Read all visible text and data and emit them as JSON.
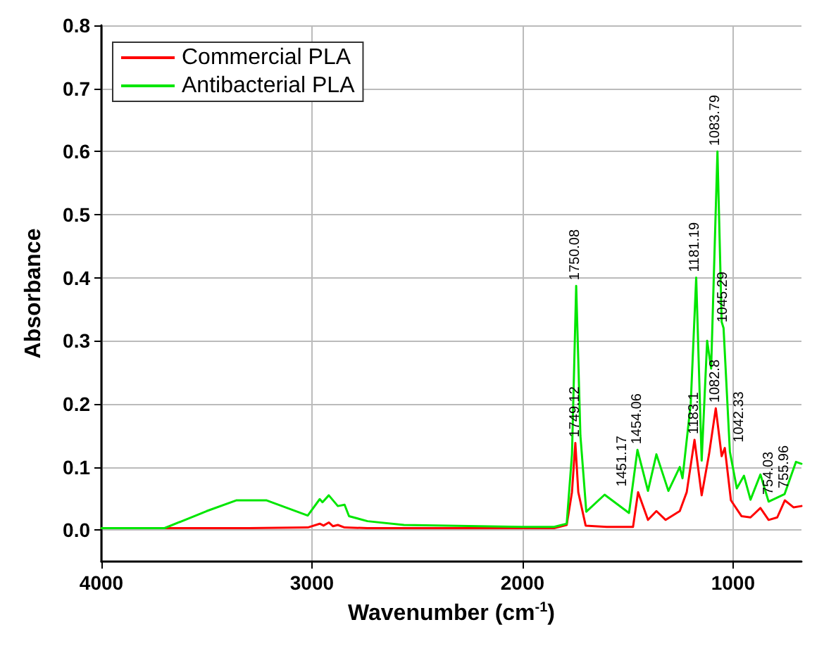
{
  "chart_data": {
    "type": "line",
    "xlabel": "Wavenumber (cm$^{-1}$)",
    "ylabel": "Absorbance",
    "xlim": [
      4000,
      675
    ],
    "xticks": [
      4000,
      3000,
      2000,
      1000
    ],
    "ylim": [
      -0.05,
      0.8
    ],
    "yticks": [
      {
        "value": 0,
        "label": "0.0"
      },
      {
        "value": 0.1,
        "label": "0.1"
      },
      {
        "value": 0.2,
        "label": "0.2"
      },
      {
        "value": 0.3,
        "label": "0.3"
      },
      {
        "value": 0.4,
        "label": "0.4"
      },
      {
        "value": 0.5,
        "label": "0.5"
      },
      {
        "value": 0.6,
        "label": "0.6"
      },
      {
        "value": 0.7,
        "label": "0.7"
      },
      {
        "value": 0.8,
        "label": "0.8"
      }
    ],
    "grid": true,
    "legend": "top left",
    "marker": "none",
    "line_style": "solid",
    "series": [
      {
        "name": "Commercial PLA",
        "color": "#ff0000",
        "x": [
          4000,
          3700,
          3300,
          3020,
          2963,
          2945,
          2920,
          2900,
          2877,
          2845,
          2736,
          2500,
          2000,
          1850,
          1790,
          1765,
          1749,
          1735,
          1700,
          1600,
          1475,
          1451,
          1404,
          1364,
          1320,
          1253,
          1220,
          1183,
          1149,
          1114,
          1082,
          1054,
          1039,
          1010,
          960,
          917,
          870,
          831,
          790,
          754,
          713,
          675
        ],
        "values": [
          0.003,
          0.003,
          0.003,
          0.004,
          0.01,
          0.007,
          0.012,
          0.006,
          0.008,
          0.004,
          0.003,
          0.003,
          0.003,
          0.003,
          0.008,
          0.06,
          0.138,
          0.06,
          0.007,
          0.005,
          0.005,
          0.06,
          0.016,
          0.03,
          0.016,
          0.03,
          0.06,
          0.143,
          0.055,
          0.12,
          0.193,
          0.117,
          0.13,
          0.047,
          0.022,
          0.02,
          0.035,
          0.016,
          0.02,
          0.047,
          0.036,
          0.038
        ]
      },
      {
        "name": "Antibacterial PLA",
        "color": "#00e600",
        "x": [
          4000,
          3700,
          3500,
          3360,
          3215,
          3020,
          2963,
          2950,
          2920,
          2877,
          2845,
          2824,
          2736,
          2563,
          2000,
          1850,
          1790,
          1765,
          1745,
          1725,
          1697,
          1610,
          1494,
          1454,
          1404,
          1364,
          1307,
          1253,
          1240,
          1201,
          1175,
          1149,
          1123,
          1104,
          1074,
          1054,
          1045,
          1015,
          982,
          948,
          917,
          870,
          831,
          755,
          701,
          675
        ],
        "values": [
          0.003,
          0.003,
          0.03,
          0.047,
          0.047,
          0.023,
          0.049,
          0.044,
          0.055,
          0.038,
          0.04,
          0.022,
          0.014,
          0.008,
          0.005,
          0.005,
          0.01,
          0.12,
          0.387,
          0.15,
          0.029,
          0.056,
          0.027,
          0.127,
          0.062,
          0.12,
          0.062,
          0.1,
          0.082,
          0.2,
          0.4,
          0.11,
          0.3,
          0.256,
          0.6,
          0.33,
          0.32,
          0.124,
          0.066,
          0.086,
          0.048,
          0.088,
          0.045,
          0.057,
          0.108,
          0.105
        ]
      }
    ],
    "annotations": [
      {
        "text": "1750.08",
        "x": 1750.08,
        "y": 0.387
      },
      {
        "text": "1749.12",
        "x": 1749.12,
        "y": 0.138
      },
      {
        "text": "1454.06",
        "x": 1454.06,
        "y": 0.127
      },
      {
        "text": "1451.17",
        "x": 1451.17,
        "y": 0.06
      },
      {
        "text": "1181.19",
        "x": 1181.19,
        "y": 0.4
      },
      {
        "text": "1183.1",
        "x": 1183.1,
        "y": 0.143
      },
      {
        "text": "1083.79",
        "x": 1083.79,
        "y": 0.6
      },
      {
        "text": "1045.29",
        "x": 1045.29,
        "y": 0.32
      },
      {
        "text": "1082.8",
        "x": 1082.8,
        "y": 0.193
      },
      {
        "text": "1042.33",
        "x": 1042.33,
        "y": 0.13
      },
      {
        "text": "755.96",
        "x": 755.96,
        "y": 0.057
      },
      {
        "text": "754.03",
        "x": 754.03,
        "y": 0.047
      }
    ]
  }
}
